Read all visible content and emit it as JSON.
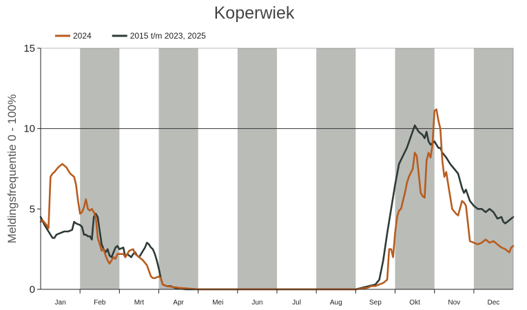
{
  "chart_data": {
    "type": "line",
    "title": "Koperwiek",
    "ylabel": "Meldingsfrequentie 0 - 100%",
    "xlabel": "",
    "ylim": [
      0,
      15
    ],
    "y_ticks": [
      0,
      5,
      10,
      15
    ],
    "y_tick_labels": [
      "0",
      "5",
      "10",
      "15"
    ],
    "x_domain": [
      0,
      12
    ],
    "months": [
      "Jan",
      "Feb",
      "Mrt",
      "Apr",
      "Mei",
      "Jun",
      "Jul",
      "Aug",
      "Sep",
      "Okt",
      "Nov",
      "Dec"
    ],
    "shaded_months": [
      1,
      3,
      5,
      7,
      9,
      11
    ],
    "gridlines": [
      10
    ],
    "legend_position": "top-left",
    "colors": {
      "band": "#babcb8",
      "grid": "#333333",
      "axis": "#222222"
    },
    "series": [
      {
        "name": "2024",
        "color": "#b85c1e",
        "x": [
          0.0,
          0.05,
          0.15,
          0.2,
          0.25,
          0.3,
          0.35,
          0.45,
          0.55,
          0.65,
          0.75,
          0.85,
          0.9,
          0.95,
          1.0,
          1.05,
          1.1,
          1.15,
          1.2,
          1.25,
          1.3,
          1.35,
          1.4,
          1.45,
          1.5,
          1.55,
          1.6,
          1.65,
          1.7,
          1.75,
          1.8,
          1.85,
          1.9,
          1.95,
          2.0,
          2.1,
          2.15,
          2.25,
          2.35,
          2.4,
          2.5,
          2.6,
          2.7,
          2.8,
          2.85,
          2.9,
          3.0,
          3.05,
          3.1,
          3.2,
          3.5,
          4.0,
          5.0,
          6.0,
          7.0,
          8.0,
          8.3,
          8.4,
          8.5,
          8.6,
          8.7,
          8.8,
          8.85,
          8.9,
          8.95,
          9.0,
          9.05,
          9.1,
          9.15,
          9.2,
          9.25,
          9.3,
          9.35,
          9.45,
          9.5,
          9.55,
          9.6,
          9.65,
          9.7,
          9.75,
          9.8,
          9.85,
          9.9,
          9.95,
          10.0,
          10.05,
          10.1,
          10.15,
          10.2,
          10.25,
          10.3,
          10.35,
          10.45,
          10.55,
          10.6,
          10.7,
          10.75,
          10.8,
          10.9,
          11.0,
          11.1,
          11.2,
          11.3,
          11.4,
          11.5,
          11.6,
          11.7,
          11.8,
          11.85,
          11.9,
          11.95,
          12.0
        ],
        "values": [
          4.2,
          4.3,
          4.0,
          3.8,
          7.0,
          7.2,
          7.3,
          7.6,
          7.8,
          7.6,
          7.2,
          7.0,
          6.5,
          5.5,
          4.7,
          4.8,
          5.1,
          5.6,
          5.0,
          4.9,
          5.0,
          4.8,
          4.5,
          3.2,
          2.8,
          2.4,
          2.5,
          2.1,
          1.8,
          1.6,
          1.8,
          2.0,
          1.9,
          2.2,
          2.2,
          2.2,
          2.0,
          2.4,
          2.5,
          2.2,
          2.0,
          1.8,
          1.5,
          0.8,
          0.7,
          0.7,
          0.8,
          0.7,
          0.3,
          0.2,
          0.1,
          0.0,
          0.0,
          0.0,
          0.0,
          0.0,
          0.1,
          0.2,
          0.2,
          0.3,
          0.4,
          0.6,
          2.5,
          2.5,
          2.0,
          3.5,
          4.5,
          4.9,
          5.0,
          5.5,
          6.0,
          6.6,
          7.0,
          7.5,
          8.5,
          8.3,
          7.2,
          6.0,
          5.8,
          5.7,
          8.0,
          8.5,
          8.2,
          9.0,
          11.1,
          11.2,
          10.5,
          10.0,
          8.0,
          7.0,
          7.3,
          6.5,
          5.0,
          4.7,
          4.6,
          5.5,
          5.4,
          5.2,
          3.0,
          2.9,
          2.8,
          2.9,
          3.1,
          2.9,
          3.0,
          2.8,
          2.6,
          2.5,
          2.4,
          2.3,
          2.6,
          2.7
        ]
      },
      {
        "name": "2015 t/m 2023, 2025",
        "color": "#2e3a36",
        "x": [
          0.0,
          0.1,
          0.2,
          0.3,
          0.35,
          0.4,
          0.5,
          0.6,
          0.7,
          0.8,
          0.85,
          0.9,
          1.0,
          1.05,
          1.1,
          1.15,
          1.2,
          1.25,
          1.3,
          1.35,
          1.4,
          1.45,
          1.5,
          1.55,
          1.6,
          1.65,
          1.7,
          1.75,
          1.8,
          1.85,
          1.9,
          1.95,
          2.0,
          2.1,
          2.15,
          2.2,
          2.25,
          2.3,
          2.35,
          2.4,
          2.45,
          2.5,
          2.55,
          2.6,
          2.65,
          2.7,
          2.75,
          2.8,
          2.85,
          2.9,
          2.95,
          3.0,
          3.05,
          3.1,
          3.2,
          3.3,
          3.4,
          3.5,
          3.7,
          4.0,
          5.0,
          6.0,
          7.0,
          8.0,
          8.5,
          8.6,
          8.7,
          8.8,
          8.9,
          9.0,
          9.1,
          9.2,
          9.3,
          9.4,
          9.5,
          9.6,
          9.7,
          9.75,
          9.8,
          9.85,
          9.9,
          10.0,
          10.1,
          10.15,
          10.2,
          10.3,
          10.4,
          10.5,
          10.6,
          10.7,
          10.75,
          10.8,
          10.9,
          11.0,
          11.1,
          11.2,
          11.3,
          11.4,
          11.5,
          11.6,
          11.7,
          11.75,
          11.8,
          11.85,
          11.9,
          12.0
        ],
        "values": [
          4.5,
          4.0,
          3.6,
          3.2,
          3.2,
          3.4,
          3.5,
          3.6,
          3.6,
          3.7,
          4.2,
          4.1,
          4.0,
          3.9,
          3.4,
          3.4,
          3.3,
          3.3,
          3.1,
          4.5,
          4.7,
          4.5,
          3.6,
          2.8,
          2.5,
          2.3,
          2.5,
          2.1,
          2.0,
          2.3,
          2.6,
          2.7,
          2.5,
          2.6,
          2.0,
          2.2,
          2.1,
          2.0,
          2.2,
          2.3,
          2.1,
          2.0,
          2.2,
          2.4,
          2.6,
          2.9,
          2.8,
          2.6,
          2.5,
          2.2,
          1.8,
          1.3,
          0.7,
          0.3,
          0.2,
          0.2,
          0.1,
          0.05,
          0.0,
          0.0,
          0.0,
          0.0,
          0.0,
          0.0,
          0.3,
          0.6,
          1.8,
          3.5,
          5.0,
          6.5,
          7.8,
          8.3,
          8.8,
          9.5,
          10.2,
          9.8,
          9.6,
          9.4,
          9.8,
          9.2,
          9.0,
          9.2,
          8.8,
          8.8,
          8.5,
          8.2,
          7.8,
          7.5,
          7.2,
          6.3,
          6.0,
          6.2,
          5.5,
          5.2,
          5.0,
          5.0,
          4.8,
          5.0,
          4.8,
          4.4,
          4.5,
          4.2,
          4.1,
          4.2,
          4.3,
          4.5
        ]
      }
    ]
  }
}
